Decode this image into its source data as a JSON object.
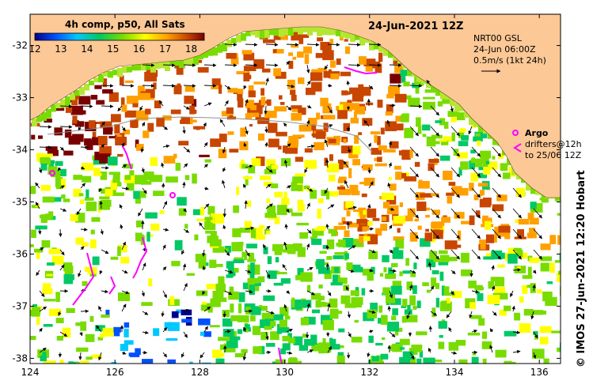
{
  "header": {
    "date_title": "24-Jun-2021 12Z",
    "colorbar_title": "4h comp, p50, All Sats",
    "colorbar_ticks": [
      "12",
      "13",
      "14",
      "15",
      "16",
      "17",
      "18"
    ]
  },
  "current_legend": {
    "line1": "NRT00 GSL",
    "line2": "24-Jun 06:00Z",
    "line3": "0.5m/s (1kt 24h)"
  },
  "argo_legend": {
    "argo_label": "Argo",
    "drifters_line1": "drifters@12h",
    "drifters_line2": "to 25/06 12Z"
  },
  "credit": "© IMOS 27-Jun-2021 12:20 Hobart",
  "axes": {
    "x_ticks": [
      "124",
      "126",
      "128",
      "130",
      "132",
      "134",
      "136"
    ],
    "y_ticks": [
      "-32",
      "-33",
      "-34",
      "-35",
      "-36",
      "-37",
      "-38"
    ]
  },
  "colors": {
    "land": "#fcc896",
    "ocean_blank": "#ffffff",
    "drifter": "#ff00ff",
    "colorbar": [
      "#00008c",
      "#0050ff",
      "#00c8ff",
      "#00c864",
      "#78dc00",
      "#ffff00",
      "#ffa000",
      "#c84600",
      "#780000"
    ]
  },
  "chart_data": {
    "type": "heatmap",
    "x_range": [
      124,
      136.5
    ],
    "y_range": [
      -38.1,
      -31.4
    ],
    "colorbar_range": [
      12,
      18.5
    ]
  }
}
